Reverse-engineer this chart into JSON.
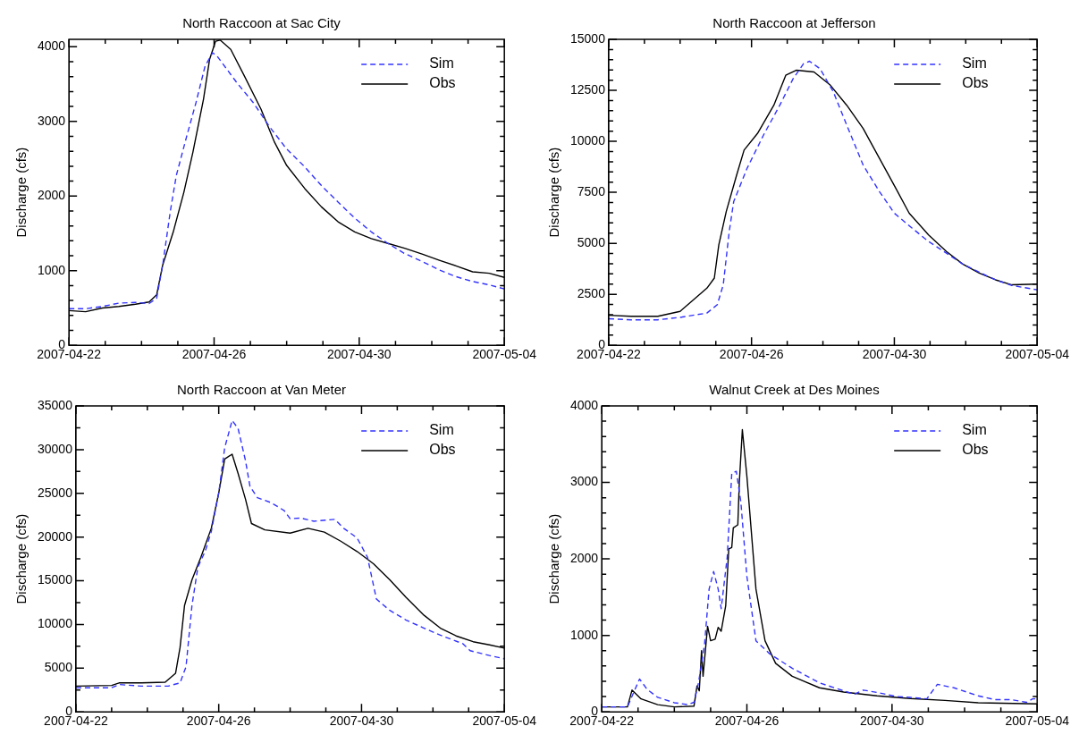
{
  "chart_data": [
    {
      "type": "line",
      "title": "North Raccoon at Sac City",
      "ylabel": "Discharge (cfs)",
      "legend": "top right",
      "marker": "none",
      "xlim": [
        "2007-04-22",
        "2007-05-04"
      ],
      "xticks": [
        "2007-04-22",
        {
          "value": "2007-04-23",
          "label": null
        },
        {
          "value": "2007-04-24",
          "label": null
        },
        {
          "value": "2007-04-25",
          "label": null
        },
        "2007-04-26",
        {
          "value": "2007-04-27",
          "label": null
        },
        {
          "value": "2007-04-28",
          "label": null
        },
        {
          "value": "2007-04-29",
          "label": null
        },
        "2007-04-30",
        {
          "value": "2007-05-01",
          "label": null
        },
        {
          "value": "2007-05-02",
          "label": null
        },
        {
          "value": "2007-05-03",
          "label": null
        },
        "2007-05-04"
      ],
      "ylim": [
        0,
        4100
      ],
      "yticks": [
        0,
        {
          "value": 200,
          "label": null
        },
        {
          "value": 400,
          "label": null
        },
        {
          "value": 600,
          "label": null
        },
        {
          "value": 800,
          "label": null
        },
        1000,
        {
          "value": 1200,
          "label": null
        },
        {
          "value": 1400,
          "label": null
        },
        {
          "value": 1600,
          "label": null
        },
        {
          "value": 1800,
          "label": null
        },
        2000,
        {
          "value": 2200,
          "label": null
        },
        {
          "value": 2400,
          "label": null
        },
        {
          "value": 2600,
          "label": null
        },
        {
          "value": 2800,
          "label": null
        },
        3000,
        {
          "value": 3200,
          "label": null
        },
        {
          "value": 3400,
          "label": null
        },
        {
          "value": 3600,
          "label": null
        },
        {
          "value": 3800,
          "label": null
        },
        4000
      ],
      "series": [
        {
          "name": "Sim",
          "color": "#3333ff",
          "line_style": "dashed",
          "x": [
            "2007-04-22T00:00",
            "2007-04-22T11:00",
            "2007-04-22T22:00",
            "2007-04-23T09:00",
            "2007-04-23T20:00",
            "2007-04-24T05:00",
            "2007-04-24T10:00",
            "2007-04-24T14:00",
            "2007-04-24T19:00",
            "2007-04-24T23:00",
            "2007-04-25T06:00",
            "2007-04-25T12:00",
            "2007-04-25T18:00",
            "2007-04-25T23:00",
            "2007-04-26T02:00",
            "2007-04-26T15:00",
            "2007-04-27T02:00",
            "2007-04-27T13:00",
            "2007-04-28T00:00",
            "2007-04-28T12:00",
            "2007-04-28T23:00",
            "2007-04-29T10:00",
            "2007-04-29T21:00",
            "2007-04-30T08:00",
            "2007-04-30T19:00",
            "2007-05-01T06:00",
            "2007-05-01T18:00",
            "2007-05-02T05:00",
            "2007-05-02T16:00",
            "2007-05-03T03:00",
            "2007-05-03T14:00",
            "2007-05-04T00:00"
          ],
          "values": [
            490,
            490,
            520,
            565,
            575,
            560,
            630,
            1075,
            1790,
            2275,
            2810,
            3250,
            3740,
            3920,
            3875,
            3520,
            3250,
            2920,
            2630,
            2390,
            2140,
            1920,
            1705,
            1520,
            1365,
            1230,
            1120,
            1010,
            920,
            855,
            810,
            755
          ]
        },
        {
          "name": "Obs",
          "color": "#000000",
          "line_style": "solid",
          "x": [
            "2007-04-22T00:00",
            "2007-04-22T11:00",
            "2007-04-22T22:00",
            "2007-04-23T09:00",
            "2007-04-23T20:00",
            "2007-04-24T05:00",
            "2007-04-24T10:00",
            "2007-04-24T14:00",
            "2007-04-24T21:00",
            "2007-04-25T04:00",
            "2007-04-25T10:00",
            "2007-04-25T17:00",
            "2007-04-25T21:00",
            "2007-04-26T01:00",
            "2007-04-26T04:00",
            "2007-04-26T11:00",
            "2007-04-26T20:00",
            "2007-04-27T07:00",
            "2007-04-27T16:00",
            "2007-04-28T00:00",
            "2007-04-28T12:00",
            "2007-04-28T23:00",
            "2007-04-29T10:00",
            "2007-04-29T21:00",
            "2007-04-30T08:00",
            "2007-04-30T19:00",
            "2007-05-01T06:00",
            "2007-05-01T18:00",
            "2007-05-02T05:00",
            "2007-05-02T16:00",
            "2007-05-03T03:00",
            "2007-05-03T14:00",
            "2007-05-04T00:00"
          ],
          "values": [
            465,
            450,
            500,
            520,
            550,
            580,
            675,
            1075,
            1520,
            2050,
            2590,
            3300,
            3830,
            4075,
            4090,
            3965,
            3610,
            3165,
            2720,
            2410,
            2100,
            1855,
            1655,
            1520,
            1430,
            1365,
            1300,
            1220,
            1140,
            1065,
            985,
            965,
            910
          ]
        }
      ]
    },
    {
      "type": "line",
      "title": "North Raccoon at Jefferson",
      "ylabel": "Discharge (cfs)",
      "legend": "top right",
      "marker": "none",
      "xlim": [
        "2007-04-22",
        "2007-05-04"
      ],
      "xticks": [
        "2007-04-22",
        {
          "value": "2007-04-23",
          "label": null
        },
        {
          "value": "2007-04-24",
          "label": null
        },
        {
          "value": "2007-04-25",
          "label": null
        },
        "2007-04-26",
        {
          "value": "2007-04-27",
          "label": null
        },
        {
          "value": "2007-04-28",
          "label": null
        },
        {
          "value": "2007-04-29",
          "label": null
        },
        "2007-04-30",
        {
          "value": "2007-05-01",
          "label": null
        },
        {
          "value": "2007-05-02",
          "label": null
        },
        {
          "value": "2007-05-03",
          "label": null
        },
        "2007-05-04"
      ],
      "ylim": [
        0,
        15000
      ],
      "yticks": [
        0,
        {
          "value": 500,
          "label": null
        },
        {
          "value": 1000,
          "label": null
        },
        {
          "value": 1500,
          "label": null
        },
        {
          "value": 2000,
          "label": null
        },
        2500,
        {
          "value": 3000,
          "label": null
        },
        {
          "value": 3500,
          "label": null
        },
        {
          "value": 4000,
          "label": null
        },
        {
          "value": 4500,
          "label": null
        },
        5000,
        {
          "value": 5500,
          "label": null
        },
        {
          "value": 6000,
          "label": null
        },
        {
          "value": 6500,
          "label": null
        },
        {
          "value": 7000,
          "label": null
        },
        7500,
        {
          "value": 8000,
          "label": null
        },
        {
          "value": 8500,
          "label": null
        },
        {
          "value": 9000,
          "label": null
        },
        {
          "value": 9500,
          "label": null
        },
        10000,
        {
          "value": 10500,
          "label": null
        },
        {
          "value": 11000,
          "label": null
        },
        {
          "value": 11500,
          "label": null
        },
        {
          "value": 12000,
          "label": null
        },
        12500,
        {
          "value": 13000,
          "label": null
        },
        {
          "value": 13500,
          "label": null
        },
        {
          "value": 14000,
          "label": null
        },
        {
          "value": 14500,
          "label": null
        },
        15000
      ],
      "series": [
        {
          "name": "Sim",
          "color": "#3333ff",
          "line_style": "dashed",
          "x": [
            "2007-04-22T00:00",
            "2007-04-22T15:00",
            "2007-04-23T09:00",
            "2007-04-24T00:00",
            "2007-04-24T18:00",
            "2007-04-25T01:00",
            "2007-04-25T05:00",
            "2007-04-25T09:00",
            "2007-04-25T12:00",
            "2007-04-25T21:00",
            "2007-04-26T08:00",
            "2007-04-26T19:00",
            "2007-04-27T04:00",
            "2007-04-27T11:00",
            "2007-04-27T15:00",
            "2007-04-27T22:00",
            "2007-04-28T07:00",
            "2007-04-28T16:00",
            "2007-04-29T03:00",
            "2007-04-29T14:00",
            "2007-04-30T00:00",
            "2007-04-30T12:00",
            "2007-04-30T23:00",
            "2007-05-01T11:00",
            "2007-05-01T22:00",
            "2007-05-02T09:00",
            "2007-05-02T20:00",
            "2007-05-03T07:00",
            "2007-05-04T00:00"
          ],
          "values": [
            1300,
            1250,
            1250,
            1370,
            1580,
            1990,
            2970,
            5575,
            7040,
            8675,
            10300,
            11770,
            13075,
            13810,
            13925,
            13565,
            12425,
            10795,
            8840,
            7535,
            6475,
            5740,
            5090,
            4515,
            3980,
            3585,
            3210,
            2935,
            2720
          ]
        },
        {
          "name": "Obs",
          "color": "#000000",
          "line_style": "solid",
          "x": [
            "2007-04-22T00:00",
            "2007-04-22T15:00",
            "2007-04-23T09:00",
            "2007-04-24T00:00",
            "2007-04-24T09:00",
            "2007-04-24T18:00",
            "2007-04-24T23:00",
            "2007-04-25T02:00",
            "2007-04-25T07:00",
            "2007-04-25T14:00",
            "2007-04-25T19:00",
            "2007-04-26T04:00",
            "2007-04-26T15:00",
            "2007-04-26T23:00",
            "2007-04-27T06:00",
            "2007-04-27T18:00",
            "2007-04-28T05:00",
            "2007-04-28T16:00",
            "2007-04-29T03:00",
            "2007-04-29T14:00",
            "2007-04-30T01:00",
            "2007-04-30T10:00",
            "2007-04-30T23:00",
            "2007-05-01T11:00",
            "2007-05-01T22:00",
            "2007-05-02T09:00",
            "2007-05-02T20:00",
            "2007-05-03T07:00",
            "2007-05-04T00:00"
          ],
          "values": [
            1470,
            1420,
            1420,
            1665,
            2235,
            2800,
            3295,
            4925,
            6555,
            8350,
            9570,
            10385,
            11770,
            13240,
            13485,
            13400,
            12750,
            11770,
            10630,
            9165,
            7695,
            6475,
            5415,
            4600,
            3980,
            3540,
            3210,
            2965,
            3000
          ]
        }
      ]
    },
    {
      "type": "line",
      "title": "North Raccoon at Van Meter",
      "ylabel": "Discharge (cfs)",
      "legend": "top right",
      "marker": "none",
      "xlim": [
        "2007-04-22",
        "2007-05-04"
      ],
      "xticks": [
        "2007-04-22",
        {
          "value": "2007-04-23",
          "label": null
        },
        {
          "value": "2007-04-24",
          "label": null
        },
        {
          "value": "2007-04-25",
          "label": null
        },
        "2007-04-26",
        {
          "value": "2007-04-27",
          "label": null
        },
        {
          "value": "2007-04-28",
          "label": null
        },
        {
          "value": "2007-04-29",
          "label": null
        },
        "2007-04-30",
        {
          "value": "2007-05-01",
          "label": null
        },
        {
          "value": "2007-05-02",
          "label": null
        },
        {
          "value": "2007-05-03",
          "label": null
        },
        "2007-05-04"
      ],
      "ylim": [
        0,
        35000
      ],
      "yticks": [
        0,
        {
          "value": 2500,
          "label": null
        },
        5000,
        {
          "value": 7500,
          "label": null
        },
        10000,
        {
          "value": 12500,
          "label": null
        },
        15000,
        {
          "value": 17500,
          "label": null
        },
        20000,
        {
          "value": 22500,
          "label": null
        },
        25000,
        {
          "value": 27500,
          "label": null
        },
        30000,
        {
          "value": 32500,
          "label": null
        },
        35000
      ],
      "series": [
        {
          "name": "Sim",
          "color": "#3333ff",
          "line_style": "dashed",
          "x": [
            "2007-04-22T00:00",
            "2007-04-23T00:00",
            "2007-04-23T05:00",
            "2007-04-23T20:00",
            "2007-04-24T14:00",
            "2007-04-24T22:00",
            "2007-04-25T02:00",
            "2007-04-25T06:00",
            "2007-04-25T10:00",
            "2007-04-25T15:00",
            "2007-04-25T19:00",
            "2007-04-26T00:00",
            "2007-04-26T04:00",
            "2007-04-26T09:00",
            "2007-04-26T13:00",
            "2007-04-26T18:00",
            "2007-04-26T21:00",
            "2007-04-27T02:00",
            "2007-04-27T11:00",
            "2007-04-27T20:00",
            "2007-04-28T00:00",
            "2007-04-28T07:00",
            "2007-04-28T16:00",
            "2007-04-29T06:00",
            "2007-04-29T12:00",
            "2007-04-29T21:00",
            "2007-04-30T04:00",
            "2007-04-30T10:00",
            "2007-04-30T19:00",
            "2007-05-01T06:00",
            "2007-05-01T18:00",
            "2007-05-02T05:00",
            "2007-05-02T20:00",
            "2007-05-03T01:00",
            "2007-05-03T14:00",
            "2007-05-04T00:00"
          ],
          "values": [
            2760,
            2760,
            3130,
            2950,
            2950,
            3315,
            5160,
            12160,
            16580,
            18420,
            20630,
            25050,
            30210,
            33340,
            32420,
            28740,
            25790,
            24500,
            23950,
            23030,
            22100,
            22180,
            21810,
            22030,
            21000,
            19900,
            17690,
            12900,
            11610,
            10500,
            9580,
            8770,
            7810,
            7000,
            6450,
            6080
          ]
        },
        {
          "name": "Obs",
          "color": "#000000",
          "line_style": "solid",
          "x": [
            "2007-04-22T00:00",
            "2007-04-23T00:00",
            "2007-04-23T05:00",
            "2007-04-23T20:00",
            "2007-04-24T12:00",
            "2007-04-24T19:00",
            "2007-04-24T22:00",
            "2007-04-25T01:00",
            "2007-04-25T06:00",
            "2007-04-25T12:00",
            "2007-04-25T19:00",
            "2007-04-26T00:00",
            "2007-04-26T04:00",
            "2007-04-26T09:00",
            "2007-04-26T13:00",
            "2007-04-26T18:00",
            "2007-04-26T22:00",
            "2007-04-27T07:00",
            "2007-04-28T00:00",
            "2007-04-28T12:00",
            "2007-04-28T23:00",
            "2007-04-29T10:00",
            "2007-04-29T21:00",
            "2007-04-30T08:00",
            "2007-04-30T19:00",
            "2007-05-01T06:00",
            "2007-05-01T18:00",
            "2007-05-02T05:00",
            "2007-05-02T16:00",
            "2007-05-03T03:00",
            "2007-05-03T14:00",
            "2007-05-04T00:00"
          ],
          "values": [
            2950,
            3020,
            3315,
            3315,
            3390,
            4420,
            7370,
            12160,
            15110,
            17690,
            21000,
            25050,
            28920,
            29480,
            27270,
            24320,
            21550,
            20820,
            20450,
            21000,
            20560,
            19530,
            18350,
            16950,
            15110,
            13080,
            11050,
            9580,
            8660,
            8030,
            7660,
            7300
          ]
        }
      ]
    },
    {
      "type": "line",
      "title": "Walnut Creek at Des Moines",
      "ylabel": "Discharge (cfs)",
      "legend": "top right",
      "marker": "none",
      "xlim": [
        "2007-04-22",
        "2007-05-04"
      ],
      "xticks": [
        "2007-04-22",
        {
          "value": "2007-04-23",
          "label": null
        },
        {
          "value": "2007-04-24",
          "label": null
        },
        {
          "value": "2007-04-25",
          "label": null
        },
        "2007-04-26",
        {
          "value": "2007-04-27",
          "label": null
        },
        {
          "value": "2007-04-28",
          "label": null
        },
        {
          "value": "2007-04-29",
          "label": null
        },
        "2007-04-30",
        {
          "value": "2007-05-01",
          "label": null
        },
        {
          "value": "2007-05-02",
          "label": null
        },
        {
          "value": "2007-05-03",
          "label": null
        },
        "2007-05-04"
      ],
      "ylim": [
        0,
        4000
      ],
      "yticks": [
        0,
        {
          "value": 200,
          "label": null
        },
        {
          "value": 400,
          "label": null
        },
        {
          "value": 600,
          "label": null
        },
        {
          "value": 800,
          "label": null
        },
        1000,
        {
          "value": 1200,
          "label": null
        },
        {
          "value": 1400,
          "label": null
        },
        {
          "value": 1600,
          "label": null
        },
        {
          "value": 1800,
          "label": null
        },
        2000,
        {
          "value": 2200,
          "label": null
        },
        {
          "value": 2400,
          "label": null
        },
        {
          "value": 2600,
          "label": null
        },
        {
          "value": 2800,
          "label": null
        },
        3000,
        {
          "value": 3200,
          "label": null
        },
        {
          "value": 3400,
          "label": null
        },
        {
          "value": 3600,
          "label": null
        },
        {
          "value": 3800,
          "label": null
        },
        4000
      ],
      "series": [
        {
          "name": "Sim",
          "color": "#3333ff",
          "line_style": "dashed",
          "x": [
            "2007-04-22T00:00",
            "2007-04-22T17:00",
            "2007-04-22T22:00",
            "2007-04-23T01:00",
            "2007-04-23T06:00",
            "2007-04-23T13:00",
            "2007-04-24T00:00",
            "2007-04-24T09:00",
            "2007-04-24T13:00",
            "2007-04-24T16:00",
            "2007-04-24T20:00",
            "2007-04-24T23:00",
            "2007-04-25T02:00",
            "2007-04-25T05:00",
            "2007-04-25T07:00",
            "2007-04-25T11:00",
            "2007-04-25T14:00",
            "2007-04-25T17:00",
            "2007-04-25T20:00",
            "2007-04-26T00:00",
            "2007-04-26T06:00",
            "2007-04-26T15:00",
            "2007-04-27T06:00",
            "2007-04-28T00:00",
            "2007-04-28T16:00",
            "2007-04-28T23:00",
            "2007-04-29T05:00",
            "2007-04-29T14:00",
            "2007-04-30T03:00",
            "2007-04-30T12:00",
            "2007-04-30T23:00",
            "2007-05-01T06:00",
            "2007-05-01T17:00",
            "2007-05-02T09:00",
            "2007-05-02T20:00",
            "2007-05-03T07:00",
            "2007-05-03T17:00",
            "2007-05-03T21:00",
            "2007-05-04T00:00"
          ],
          "values": [
            65,
            65,
            295,
            430,
            295,
            190,
            120,
            95,
            125,
            380,
            885,
            1605,
            1835,
            1605,
            1350,
            2025,
            3120,
            3145,
            2745,
            1770,
            930,
            760,
            570,
            380,
            275,
            230,
            285,
            255,
            200,
            190,
            170,
            360,
            315,
            210,
            160,
            160,
            125,
            170,
            170
          ]
        },
        {
          "name": "Obs",
          "color": "#000000",
          "line_style": "solid",
          "x": [
            "2007-04-22T00:00",
            "2007-04-22T17:00",
            "2007-04-22T20:00",
            "2007-04-23T02:00",
            "2007-04-23T13:00",
            "2007-04-24T00:00",
            "2007-04-24T13:00",
            "2007-04-24T15:00",
            "2007-04-24T16:30",
            "2007-04-24T18:00",
            "2007-04-24T19:00",
            "2007-04-24T22:00",
            "2007-04-25T00:00",
            "2007-04-25T03:00",
            "2007-04-25T05:00",
            "2007-04-25T07:00",
            "2007-04-25T10:00",
            "2007-04-25T12:00",
            "2007-04-25T14:00",
            "2007-04-25T15:00",
            "2007-04-25T18:00",
            "2007-04-25T19:00",
            "2007-04-25T21:00",
            "2007-04-26T00:00",
            "2007-04-26T06:00",
            "2007-04-26T12:00",
            "2007-04-26T19:00",
            "2007-04-27T06:00",
            "2007-04-28T00:00",
            "2007-04-28T16:00",
            "2007-04-29T14:00",
            "2007-04-30T12:00",
            "2007-05-01T11:00",
            "2007-05-02T09:00",
            "2007-05-04T00:00"
          ],
          "values": [
            65,
            65,
            285,
            170,
            95,
            65,
            75,
            340,
            275,
            800,
            465,
            1120,
            930,
            950,
            1105,
            1055,
            1390,
            2130,
            2150,
            2405,
            2445,
            3000,
            3690,
            3080,
            1605,
            930,
            635,
            465,
            315,
            260,
            210,
            175,
            150,
            120,
            105
          ]
        }
      ]
    }
  ]
}
